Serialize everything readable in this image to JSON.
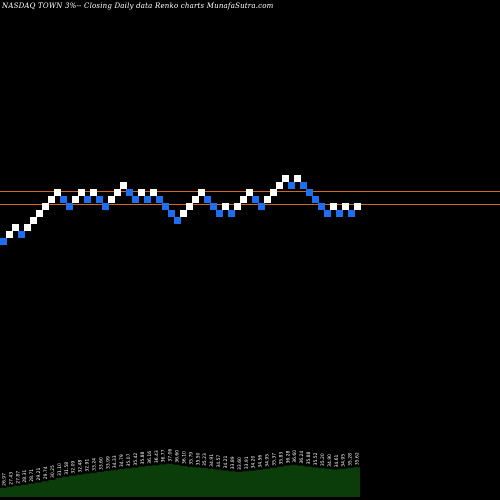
{
  "header": {
    "title": "NASDAQ TOWN  3%-- Closing Daily data Renko charts MunafaSutra.com"
  },
  "chart_data": {
    "type": "renko",
    "title": "NASDAQ TOWN  3%-- Closing Daily data Renko charts MunafaSutra.com",
    "brick_colors": {
      "up": "#ffffff",
      "down": "#1e6ff0"
    },
    "reference_line_color": "#d2691e",
    "volume_color": "#0a3d0a",
    "reference_levels": [
      34.6,
      33.6
    ],
    "bricks": [
      {
        "dir": "down",
        "level": 32.6
      },
      {
        "dir": "up",
        "level": 33.1
      },
      {
        "dir": "up",
        "level": 33.6
      },
      {
        "dir": "down",
        "level": 33.1
      },
      {
        "dir": "up",
        "level": 33.6
      },
      {
        "dir": "up",
        "level": 34.1
      },
      {
        "dir": "up",
        "level": 34.6
      },
      {
        "dir": "up",
        "level": 35.1
      },
      {
        "dir": "up",
        "level": 35.6
      },
      {
        "dir": "up",
        "level": 36.1
      },
      {
        "dir": "down",
        "level": 35.6
      },
      {
        "dir": "down",
        "level": 35.1
      },
      {
        "dir": "up",
        "level": 35.6
      },
      {
        "dir": "up",
        "level": 36.1
      },
      {
        "dir": "down",
        "level": 35.6
      },
      {
        "dir": "up",
        "level": 36.1
      },
      {
        "dir": "down",
        "level": 35.6
      },
      {
        "dir": "down",
        "level": 35.1
      },
      {
        "dir": "up",
        "level": 35.6
      },
      {
        "dir": "up",
        "level": 36.1
      },
      {
        "dir": "up",
        "level": 36.6
      },
      {
        "dir": "down",
        "level": 36.1
      },
      {
        "dir": "down",
        "level": 35.6
      },
      {
        "dir": "up",
        "level": 36.1
      },
      {
        "dir": "down",
        "level": 35.6
      },
      {
        "dir": "up",
        "level": 36.1
      },
      {
        "dir": "down",
        "level": 35.6
      },
      {
        "dir": "down",
        "level": 35.1
      },
      {
        "dir": "down",
        "level": 34.6
      },
      {
        "dir": "down",
        "level": 34.1
      },
      {
        "dir": "up",
        "level": 34.6
      },
      {
        "dir": "up",
        "level": 35.1
      },
      {
        "dir": "up",
        "level": 35.6
      },
      {
        "dir": "up",
        "level": 36.1
      },
      {
        "dir": "down",
        "level": 35.6
      },
      {
        "dir": "down",
        "level": 35.1
      },
      {
        "dir": "down",
        "level": 34.6
      },
      {
        "dir": "up",
        "level": 35.1
      },
      {
        "dir": "down",
        "level": 34.6
      },
      {
        "dir": "up",
        "level": 35.1
      },
      {
        "dir": "up",
        "level": 35.6
      },
      {
        "dir": "up",
        "level": 36.1
      },
      {
        "dir": "down",
        "level": 35.6
      },
      {
        "dir": "down",
        "level": 35.1
      },
      {
        "dir": "up",
        "level": 35.6
      },
      {
        "dir": "up",
        "level": 36.1
      },
      {
        "dir": "up",
        "level": 36.6
      },
      {
        "dir": "up",
        "level": 37.1
      },
      {
        "dir": "down",
        "level": 36.6
      },
      {
        "dir": "up",
        "level": 37.1
      },
      {
        "dir": "down",
        "level": 36.6
      },
      {
        "dir": "down",
        "level": 36.1
      },
      {
        "dir": "down",
        "level": 35.6
      },
      {
        "dir": "down",
        "level": 35.1
      },
      {
        "dir": "down",
        "level": 34.6
      },
      {
        "dir": "up",
        "level": 35.1
      },
      {
        "dir": "down",
        "level": 34.6
      },
      {
        "dir": "up",
        "level": 35.1
      },
      {
        "dir": "down",
        "level": 34.6
      },
      {
        "dir": "up",
        "level": 35.1
      }
    ],
    "volume_labels": [
      "26.97",
      "27.43",
      "27.87",
      "28.31",
      "28.71",
      "29.21",
      "29.74",
      "30.25",
      "31.10",
      "31.58",
      "32.09",
      "32.48",
      "32.91",
      "33.24",
      "33.60",
      "33.99",
      "34.33",
      "34.79",
      "35.07",
      "35.42",
      "35.88",
      "36.16",
      "36.43",
      "36.77",
      "37.06",
      "36.60",
      "36.10",
      "35.79",
      "35.50",
      "35.23",
      "34.91",
      "34.57",
      "34.21",
      "33.89",
      "33.60",
      "33.91",
      "34.20",
      "34.56",
      "34.95",
      "35.37",
      "35.83",
      "36.28",
      "36.60",
      "36.24",
      "35.88",
      "35.52",
      "35.20",
      "34.90",
      "34.61",
      "34.95",
      "35.28",
      "35.62"
    ]
  }
}
